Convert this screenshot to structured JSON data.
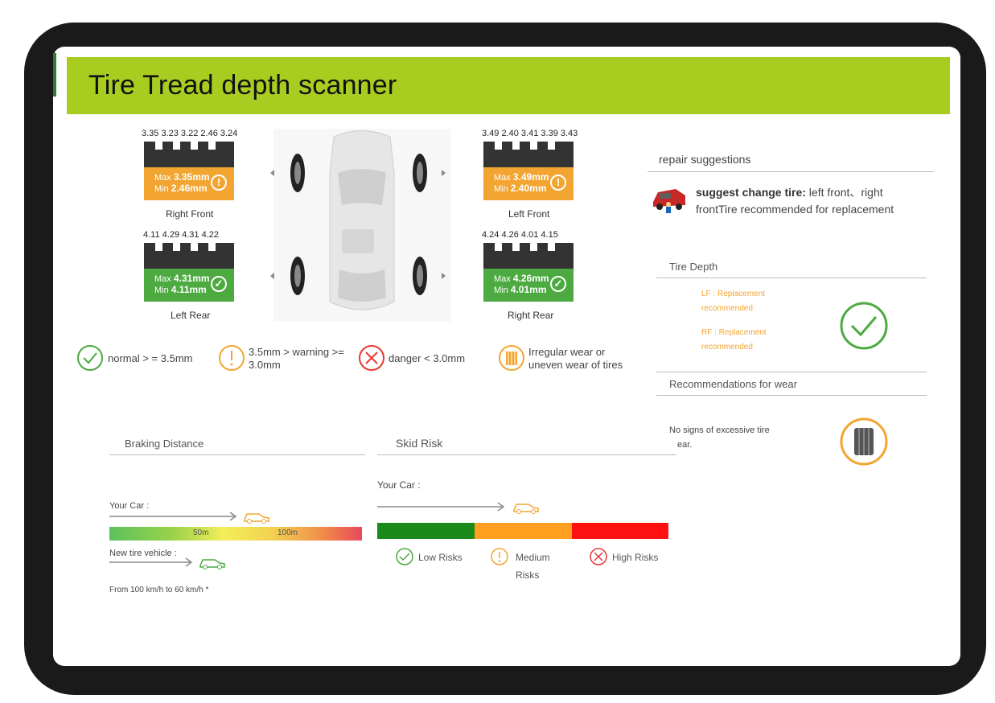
{
  "title": "Tire Tread depth scanner",
  "tires": {
    "right_front": {
      "readings": "3.35 3.23 3.22 2.46 3.24",
      "max_label": "Max",
      "max": "3.35mm",
      "min_label": "Min",
      "min": "2.46mm",
      "status": "warning",
      "name": "Right Front"
    },
    "left_front": {
      "readings": "3.49 2.40 3.41 3.39 3.43",
      "max_label": "Max",
      "max": "3.49mm",
      "min_label": "Min",
      "min": "2.40mm",
      "status": "warning",
      "name": "Left Front"
    },
    "left_rear": {
      "readings": "4.11   4.29   4.31   4.22",
      "max_label": "Max",
      "max": "4.31mm",
      "min_label": "Min",
      "min": "4.11mm",
      "status": "normal",
      "name": "Left Rear"
    },
    "right_rear": {
      "readings": "4.24   4.26   4.01   4.15",
      "max_label": "Max",
      "max": "4.26mm",
      "min_label": "Min",
      "min": "4.01mm",
      "status": "normal",
      "name": "Right Rear"
    }
  },
  "legend": {
    "normal": "normal > = 3.5mm",
    "warning_1": "3.5mm > warning >=",
    "warning_2": "3.0mm",
    "danger": "danger < 3.0mm",
    "irregular_1": "Irregular wear or",
    "irregular_2": "uneven wear of tires"
  },
  "repair": {
    "heading": "repair suggestions",
    "bold": "suggest change tire:",
    "text_1": " left front、right",
    "text_2": "frontTire recommended for replacement"
  },
  "tire_depth": {
    "heading": "Tire Depth",
    "lf_1": "LF : Replacement",
    "lf_2": "recommended",
    "rf_1": "RF : Replacement",
    "rf_2": "recommended"
  },
  "wear": {
    "heading": "Recommendations for wear",
    "text_1": "No signs of excessive tire",
    "text_2": "ear."
  },
  "braking": {
    "heading": "Braking Distance",
    "your_car": "Your Car :",
    "mark_50": "50m",
    "mark_100": "100m",
    "new_tire": "New tire vehicle :",
    "footnote": "From 100 km/h to 60 km/h *"
  },
  "skid": {
    "heading": "Skid Risk",
    "your_car": "Your Car :",
    "low": "Low Risks",
    "medium_1": "Medium",
    "medium_2": "Risks",
    "high": "High Risks"
  },
  "colors": {
    "accent": "#a9cc21",
    "warning": "#f2a531",
    "normal": "#4caa40",
    "danger": "#e53935",
    "skid_low": "#1a8a1a",
    "skid_medium": "#ffa020",
    "skid_high": "#ff1010"
  }
}
